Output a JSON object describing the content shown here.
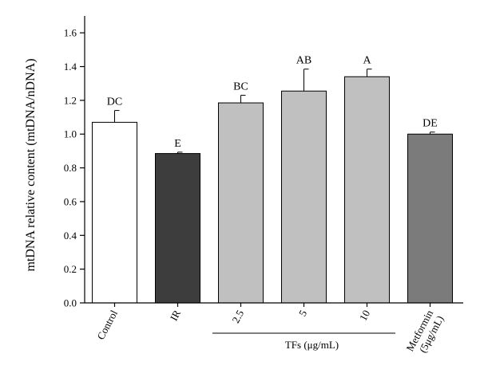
{
  "chart_data": {
    "type": "bar",
    "ylabel": "mtDNA relative content (mtDNA/nDNA)",
    "ylim": [
      0,
      1.7
    ],
    "yticks": [
      0.0,
      0.2,
      0.4,
      0.6,
      0.8,
      1.0,
      1.2,
      1.4,
      1.6
    ],
    "ytick_labels": [
      "0.0",
      "0.2",
      "0.4",
      "0.6",
      "0.8",
      "1.0",
      "1.2",
      "1.4",
      "1.6"
    ],
    "categories": [
      "Control",
      "IR",
      "2.5",
      "5",
      "10",
      "Metformin (5μg/mL)"
    ],
    "category_lines": [
      [
        "Control"
      ],
      [
        "IR"
      ],
      [
        "2.5"
      ],
      [
        "5"
      ],
      [
        "10"
      ],
      [
        "Metformin",
        "(5μg/mL)"
      ]
    ],
    "values": [
      1.07,
      0.885,
      1.185,
      1.255,
      1.34,
      1.0
    ],
    "errors": [
      0.07,
      0.008,
      0.045,
      0.13,
      0.045,
      0.012
    ],
    "significance": [
      "DC",
      "E",
      "BC",
      "AB",
      "A",
      "DE"
    ],
    "bar_colors": [
      "#ffffff",
      "#3d3d3d",
      "#c0c0c0",
      "#c0c0c0",
      "#c0c0c0",
      "#7b7b7b"
    ],
    "group_label": "TFs (μg/mL)",
    "grid": false
  }
}
